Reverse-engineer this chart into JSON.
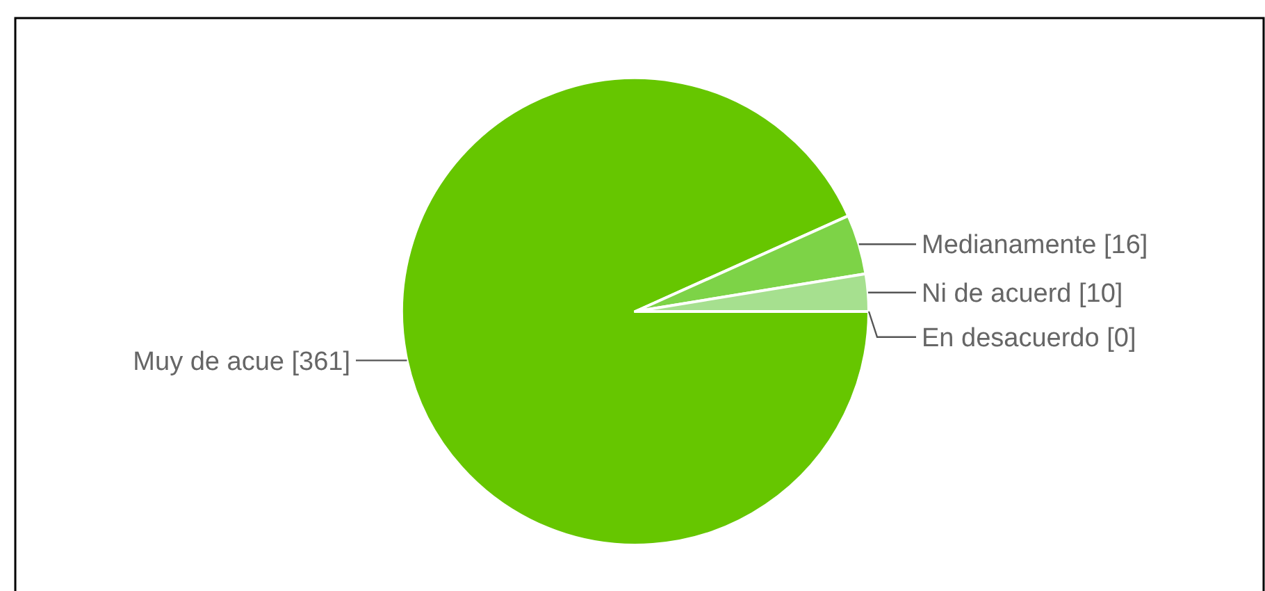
{
  "chart_data": {
    "type": "pie",
    "categories": [
      "Muy de acue",
      "Medianamente",
      "Ni de acuerd",
      "En desacuerdo"
    ],
    "values": [
      361,
      16,
      10,
      0
    ],
    "colors": [
      "#66c600",
      "#7dd347",
      "#a6e08f",
      "#c9eebb"
    ],
    "value_labels": [
      "[361]",
      "[16]",
      "[10]",
      "[0]"
    ]
  }
}
